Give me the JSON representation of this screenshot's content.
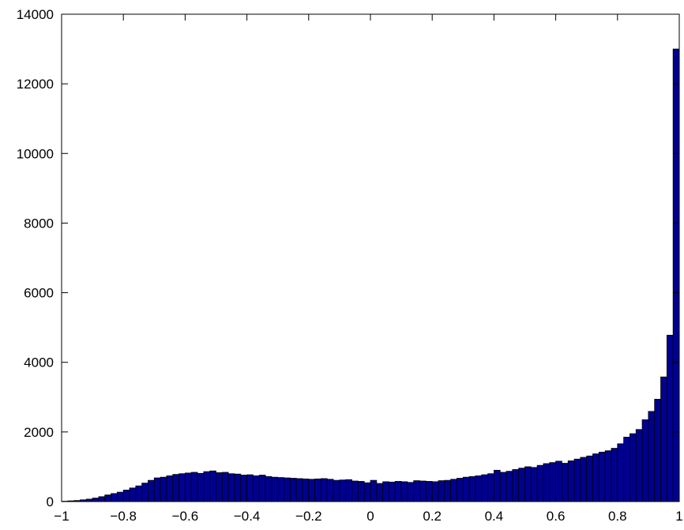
{
  "chart_data": {
    "type": "bar",
    "title": "",
    "xlabel": "",
    "ylabel": "",
    "xlim": [
      -1,
      1
    ],
    "ylim": [
      0,
      14000
    ],
    "grid": false,
    "bin_width": 0.02,
    "x_ticks": [
      "−1",
      "−0.8",
      "−0.6",
      "−0.4",
      "−0.2",
      "0",
      "0.2",
      "0.4",
      "0.6",
      "0.8",
      "1"
    ],
    "x_tick_values": [
      -1,
      -0.8,
      -0.6,
      -0.4,
      -0.2,
      0,
      0.2,
      0.4,
      0.6,
      0.8,
      1
    ],
    "y_ticks": [
      "0",
      "2000",
      "4000",
      "6000",
      "8000",
      "10000",
      "12000",
      "14000"
    ],
    "y_tick_values": [
      0,
      2000,
      4000,
      6000,
      8000,
      10000,
      12000,
      14000
    ],
    "bar_color": "#00008f",
    "edge_color": "#000000",
    "bin_centers": [
      -0.99,
      -0.97,
      -0.95,
      -0.93,
      -0.91,
      -0.89,
      -0.87,
      -0.85,
      -0.83,
      -0.81,
      -0.79,
      -0.77,
      -0.75,
      -0.73,
      -0.71,
      -0.69,
      -0.67,
      -0.65,
      -0.63,
      -0.61,
      -0.59,
      -0.57,
      -0.55,
      -0.53,
      -0.51,
      -0.49,
      -0.47,
      -0.45,
      -0.43,
      -0.41,
      -0.39,
      -0.37,
      -0.35,
      -0.33,
      -0.31,
      -0.29,
      -0.27,
      -0.25,
      -0.23,
      -0.21,
      -0.19,
      -0.17,
      -0.15,
      -0.13,
      -0.11,
      -0.09,
      -0.07,
      -0.05,
      -0.03,
      -0.01,
      0.01,
      0.03,
      0.05,
      0.07,
      0.09,
      0.11,
      0.13,
      0.15,
      0.17,
      0.19,
      0.21,
      0.23,
      0.25,
      0.27,
      0.29,
      0.31,
      0.33,
      0.35,
      0.37,
      0.39,
      0.41,
      0.43,
      0.45,
      0.47,
      0.49,
      0.51,
      0.53,
      0.55,
      0.57,
      0.59,
      0.61,
      0.63,
      0.65,
      0.67,
      0.69,
      0.71,
      0.73,
      0.75,
      0.77,
      0.79,
      0.81,
      0.83,
      0.85,
      0.87,
      0.89,
      0.91,
      0.93,
      0.95,
      0.97,
      0.99
    ],
    "values": [
      10,
      20,
      30,
      50,
      70,
      100,
      140,
      190,
      230,
      270,
      330,
      390,
      450,
      530,
      610,
      680,
      700,
      740,
      780,
      800,
      820,
      840,
      810,
      860,
      880,
      830,
      840,
      800,
      790,
      760,
      770,
      740,
      760,
      720,
      700,
      690,
      680,
      670,
      660,
      650,
      640,
      650,
      660,
      640,
      610,
      620,
      630,
      590,
      580,
      540,
      610,
      520,
      570,
      560,
      580,
      570,
      550,
      600,
      590,
      580,
      570,
      600,
      610,
      640,
      670,
      700,
      720,
      740,
      770,
      800,
      900,
      840,
      870,
      920,
      960,
      1000,
      980,
      1040,
      1090,
      1120,
      1160,
      1100,
      1170,
      1220,
      1270,
      1310,
      1370,
      1420,
      1460,
      1530,
      1660,
      1850,
      1950,
      2070,
      2350,
      2590,
      2940,
      3580,
      4780,
      13000
    ]
  }
}
